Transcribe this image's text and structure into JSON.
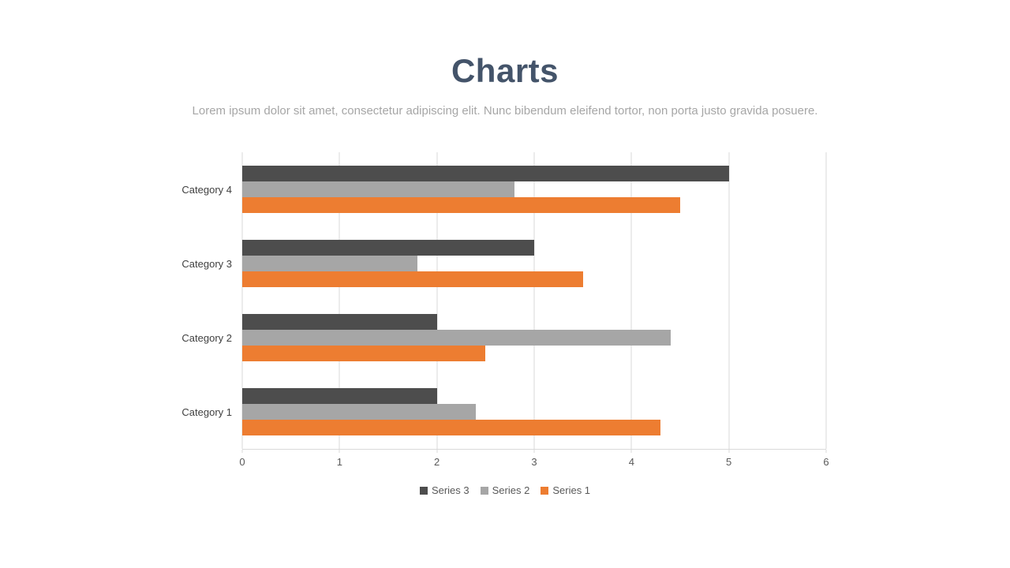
{
  "slide": {
    "title": "Charts",
    "subtitle": "Lorem ipsum dolor sit amet, consectetur adipiscing elit. Nunc bibendum eleifend tortor, non porta justo gravida posuere."
  },
  "colors": {
    "title": "#44546A",
    "subtitle_text": "#A6A6A6",
    "axis_text": "#595959",
    "gridline": "#D9D9D9"
  },
  "chart_data": {
    "type": "bar",
    "orientation": "horizontal",
    "title": "",
    "xlabel": "",
    "ylabel": "",
    "grid": true,
    "xlim": [
      0,
      6
    ],
    "x_ticks": [
      0,
      1,
      2,
      3,
      4,
      5,
      6
    ],
    "categories": [
      "Category 1",
      "Category 2",
      "Category 3",
      "Category 4"
    ],
    "series": [
      {
        "name": "Series 1",
        "color": "#ED7D31",
        "values": [
          4.3,
          2.5,
          3.5,
          4.5
        ]
      },
      {
        "name": "Series 2",
        "color": "#A6A6A6",
        "values": [
          2.4,
          4.4,
          1.8,
          2.8
        ]
      },
      {
        "name": "Series 3",
        "color": "#4D4D4D",
        "values": [
          2,
          2,
          3,
          5
        ]
      }
    ],
    "legend_position": "bottom",
    "legend_order": [
      "Series 3",
      "Series 2",
      "Series 1"
    ]
  }
}
